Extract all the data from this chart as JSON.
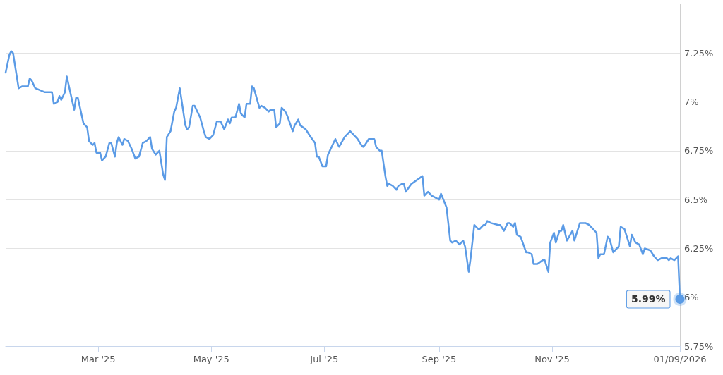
{
  "chart_data": {
    "type": "line",
    "x": [
      "2025-01-10",
      "2025-01-12",
      "2025-01-13",
      "2025-01-14",
      "2025-01-16",
      "2025-01-17",
      "2025-01-19",
      "2025-01-22",
      "2025-01-23",
      "2025-01-24",
      "2025-01-26",
      "2025-01-31",
      "2025-02-04",
      "2025-02-05",
      "2025-02-07",
      "2025-02-08",
      "2025-02-09",
      "2025-02-11",
      "2025-02-12",
      "2025-02-16",
      "2025-02-17",
      "2025-02-18",
      "2025-02-21",
      "2025-02-23",
      "2025-02-24",
      "2025-02-26",
      "2025-02-27",
      "2025-02-28",
      "2025-03-02",
      "2025-03-03",
      "2025-03-05",
      "2025-03-07",
      "2025-03-08",
      "2025-03-10",
      "2025-03-11",
      "2025-03-12",
      "2025-03-14",
      "2025-03-15",
      "2025-03-17",
      "2025-03-19",
      "2025-03-21",
      "2025-03-23",
      "2025-03-25",
      "2025-03-27",
      "2025-03-29",
      "2025-03-30",
      "2025-04-01",
      "2025-04-03",
      "2025-04-05",
      "2025-04-06",
      "2025-04-07",
      "2025-04-09",
      "2025-04-11",
      "2025-04-12",
      "2025-04-14",
      "2025-04-17",
      "2025-04-18",
      "2025-04-19",
      "2025-04-21",
      "2025-04-22",
      "2025-04-24",
      "2025-04-25",
      "2025-04-27",
      "2025-04-28",
      "2025-04-30",
      "2025-05-02",
      "2025-05-04",
      "2025-05-06",
      "2025-05-08",
      "2025-05-10",
      "2025-05-11",
      "2025-05-12",
      "2025-05-14",
      "2025-05-16",
      "2025-05-17",
      "2025-05-19",
      "2025-05-20",
      "2025-05-22",
      "2025-05-23",
      "2025-05-24",
      "2025-05-27",
      "2025-05-28",
      "2025-05-30",
      "2025-06-01",
      "2025-06-02",
      "2025-06-04",
      "2025-06-05",
      "2025-06-07",
      "2025-06-08",
      "2025-06-10",
      "2025-06-11",
      "2025-06-14",
      "2025-06-15",
      "2025-06-17",
      "2025-06-18",
      "2025-06-21",
      "2025-06-23",
      "2025-06-26",
      "2025-06-27",
      "2025-06-28",
      "2025-06-30",
      "2025-07-02",
      "2025-07-03",
      "2025-07-04",
      "2025-07-06",
      "2025-07-07",
      "2025-07-09",
      "2025-07-12",
      "2025-07-13",
      "2025-07-15",
      "2025-07-17",
      "2025-07-19",
      "2025-07-21",
      "2025-07-22",
      "2025-07-23",
      "2025-07-25",
      "2025-07-28",
      "2025-07-29",
      "2025-07-31",
      "2025-08-01",
      "2025-08-03",
      "2025-08-04",
      "2025-08-05",
      "2025-08-07",
      "2025-08-09",
      "2025-08-10",
      "2025-08-12",
      "2025-08-13",
      "2025-08-14",
      "2025-08-17",
      "2025-08-23",
      "2025-08-24",
      "2025-08-26",
      "2025-08-28",
      "2025-09-01",
      "2025-09-02",
      "2025-09-05",
      "2025-09-07",
      "2025-09-08",
      "2025-09-10",
      "2025-09-12",
      "2025-09-14",
      "2025-09-15",
      "2025-09-17",
      "2025-09-18",
      "2025-09-20",
      "2025-09-22",
      "2025-09-23",
      "2025-09-25",
      "2025-09-26",
      "2025-09-27",
      "2025-09-29",
      "2025-10-03",
      "2025-10-04",
      "2025-10-06",
      "2025-10-08",
      "2025-10-09",
      "2025-10-11",
      "2025-10-12",
      "2025-10-13",
      "2025-10-15",
      "2025-10-18",
      "2025-10-19",
      "2025-10-21",
      "2025-10-22",
      "2025-10-24",
      "2025-10-27",
      "2025-10-28",
      "2025-10-30",
      "2025-10-31",
      "2025-11-02",
      "2025-11-03",
      "2025-11-05",
      "2025-11-06",
      "2025-11-07",
      "2025-11-09",
      "2025-11-12",
      "2025-11-13",
      "2025-11-16",
      "2025-11-19",
      "2025-11-21",
      "2025-11-22",
      "2025-11-25",
      "2025-11-26",
      "2025-11-27",
      "2025-11-29",
      "2025-12-01",
      "2025-12-02",
      "2025-12-04",
      "2025-12-05",
      "2025-12-07",
      "2025-12-08",
      "2025-12-10",
      "2025-12-13",
      "2025-12-14",
      "2025-12-16",
      "2025-12-18",
      "2025-12-20",
      "2025-12-21",
      "2025-12-24",
      "2025-12-26",
      "2025-12-28",
      "2025-12-30",
      "2026-01-02",
      "2026-01-03",
      "2026-01-04",
      "2026-01-06",
      "2026-01-08",
      "2026-01-09"
    ],
    "series": [
      {
        "color": "#5b9be6",
        "values": [
          7.15,
          7.24,
          7.26,
          7.25,
          7.13,
          7.07,
          7.08,
          7.08,
          7.12,
          7.11,
          7.07,
          7.05,
          7.05,
          6.99,
          7.0,
          7.03,
          7.01,
          7.05,
          7.13,
          6.96,
          7.02,
          7.02,
          6.89,
          6.87,
          6.8,
          6.78,
          6.79,
          6.74,
          6.74,
          6.7,
          6.72,
          6.79,
          6.79,
          6.72,
          6.79,
          6.82,
          6.78,
          6.81,
          6.8,
          6.76,
          6.71,
          6.72,
          6.79,
          6.8,
          6.82,
          6.76,
          6.73,
          6.75,
          6.63,
          6.6,
          6.82,
          6.85,
          6.95,
          6.97,
          7.07,
          6.88,
          6.86,
          6.87,
          6.98,
          6.98,
          6.94,
          6.92,
          6.85,
          6.82,
          6.81,
          6.83,
          6.9,
          6.9,
          6.86,
          6.91,
          6.89,
          6.92,
          6.92,
          6.99,
          6.94,
          6.92,
          6.99,
          6.99,
          7.08,
          7.07,
          6.97,
          6.98,
          6.97,
          6.95,
          6.96,
          6.96,
          6.87,
          6.89,
          6.97,
          6.95,
          6.93,
          6.85,
          6.88,
          6.91,
          6.88,
          6.86,
          6.83,
          6.79,
          6.72,
          6.72,
          6.67,
          6.67,
          6.73,
          6.75,
          6.79,
          6.81,
          6.77,
          6.82,
          6.83,
          6.85,
          6.83,
          6.81,
          6.78,
          6.77,
          6.78,
          6.81,
          6.81,
          6.77,
          6.75,
          6.75,
          6.62,
          6.57,
          6.58,
          6.57,
          6.55,
          6.57,
          6.58,
          6.58,
          6.54,
          6.58,
          6.62,
          6.52,
          6.54,
          6.52,
          6.5,
          6.53,
          6.46,
          6.29,
          6.28,
          6.29,
          6.27,
          6.29,
          6.26,
          6.13,
          6.2,
          6.37,
          6.35,
          6.35,
          6.37,
          6.37,
          6.39,
          6.38,
          6.37,
          6.37,
          6.34,
          6.38,
          6.38,
          6.36,
          6.38,
          6.32,
          6.31,
          6.23,
          6.23,
          6.22,
          6.17,
          6.17,
          6.19,
          6.19,
          6.13,
          6.28,
          6.33,
          6.28,
          6.34,
          6.34,
          6.37,
          6.29,
          6.34,
          6.29,
          6.38,
          6.38,
          6.37,
          6.36,
          6.33,
          6.2,
          6.22,
          6.22,
          6.31,
          6.3,
          6.23,
          6.24,
          6.26,
          6.36,
          6.35,
          6.26,
          6.32,
          6.28,
          6.27,
          6.22,
          6.25,
          6.24,
          6.21,
          6.19,
          6.2,
          6.2,
          6.19,
          6.2,
          6.19,
          6.21,
          5.99
        ],
        "value_labels": [
          null,
          null,
          null,
          null,
          null,
          null,
          null,
          null,
          null,
          null,
          null,
          null,
          null,
          null,
          null,
          null,
          null,
          null,
          null,
          null,
          null,
          null,
          null,
          null,
          null,
          null,
          null,
          null,
          null,
          null,
          null,
          null,
          null,
          null,
          null,
          null,
          null,
          null,
          null,
          null,
          null,
          null,
          null,
          null,
          null,
          null,
          null,
          null,
          null,
          null,
          null,
          null,
          null,
          null,
          null,
          null,
          null,
          null,
          null,
          null,
          null,
          null,
          null,
          null,
          null,
          null,
          null,
          null,
          null,
          null,
          null,
          null,
          null,
          null,
          null,
          null,
          null,
          null,
          null,
          null,
          null,
          null,
          null,
          null,
          null,
          null,
          null,
          null,
          null,
          null,
          null,
          null,
          null,
          null,
          null,
          null,
          null,
          null,
          null,
          null,
          null,
          null,
          null,
          null,
          null,
          null,
          null,
          null,
          null,
          null,
          null,
          null,
          null,
          null,
          null,
          null,
          null,
          null,
          null,
          null,
          null,
          null,
          null,
          null,
          null,
          null,
          null,
          null,
          null,
          null,
          null,
          null,
          null,
          null,
          null,
          null,
          null,
          null,
          null,
          null,
          null,
          null,
          null,
          null,
          null,
          null,
          null,
          null,
          null,
          null,
          null,
          null,
          null,
          null,
          null,
          null,
          null,
          null,
          null,
          null,
          null,
          null,
          null,
          null,
          null,
          null,
          null,
          null,
          null,
          null,
          null,
          null,
          null,
          null,
          null,
          null,
          null,
          null,
          null,
          null,
          null,
          null,
          null,
          null,
          null,
          null,
          null,
          null,
          null,
          null,
          null,
          null,
          null,
          null,
          null,
          null,
          null,
          null,
          null,
          null,
          null,
          null,
          null,
          null,
          null,
          null,
          null,
          null,
          "5.99%"
        ]
      }
    ],
    "xlim": [
      "2025-01-10",
      "2026-01-09"
    ],
    "xticks": [
      {
        "value": "2025-03-01",
        "label": "Mar '25"
      },
      {
        "value": "2025-05-01",
        "label": "May '25"
      },
      {
        "value": "2025-07-01",
        "label": "Jul '25"
      },
      {
        "value": "2025-09-01",
        "label": "Sep '25"
      },
      {
        "value": "2025-11-01",
        "label": "Nov '25"
      },
      {
        "value": "2026-01-09",
        "label": "01/09/2026"
      }
    ],
    "ylim": [
      5.75,
      7.5
    ],
    "yticks": [
      {
        "value": 5.75,
        "label": "5.75%"
      },
      {
        "value": 6,
        "label": "6%"
      },
      {
        "value": 6.25,
        "label": "6.25%"
      },
      {
        "value": 6.5,
        "label": "6.5%"
      },
      {
        "value": 6.75,
        "label": "6.75%"
      },
      {
        "value": 7,
        "label": "7%"
      },
      {
        "value": 7.25,
        "label": "7.25%"
      }
    ],
    "grid": "y"
  }
}
